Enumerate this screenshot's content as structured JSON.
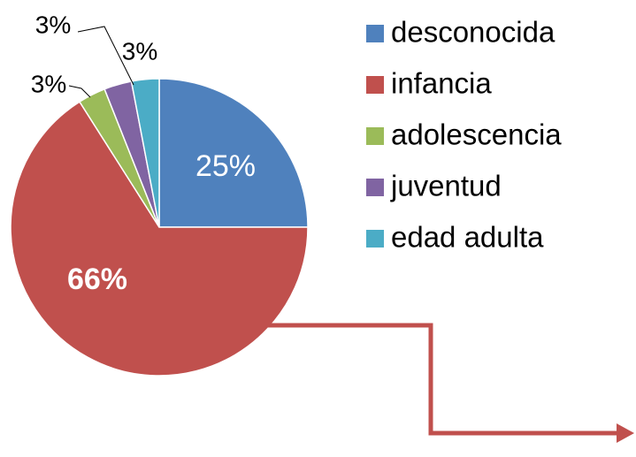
{
  "chart_data": {
    "type": "pie",
    "categories": [
      "desconocida",
      "infancia",
      "adolescencia",
      "juventud",
      "edad adulta"
    ],
    "values": [
      25,
      66,
      3,
      3,
      3
    ],
    "value_labels": [
      "25%",
      "66%",
      "3%",
      "3%",
      "3%"
    ],
    "colors": [
      "#4f81bd",
      "#c0504d",
      "#9bbb59",
      "#8064a2",
      "#4bacc6"
    ]
  }
}
